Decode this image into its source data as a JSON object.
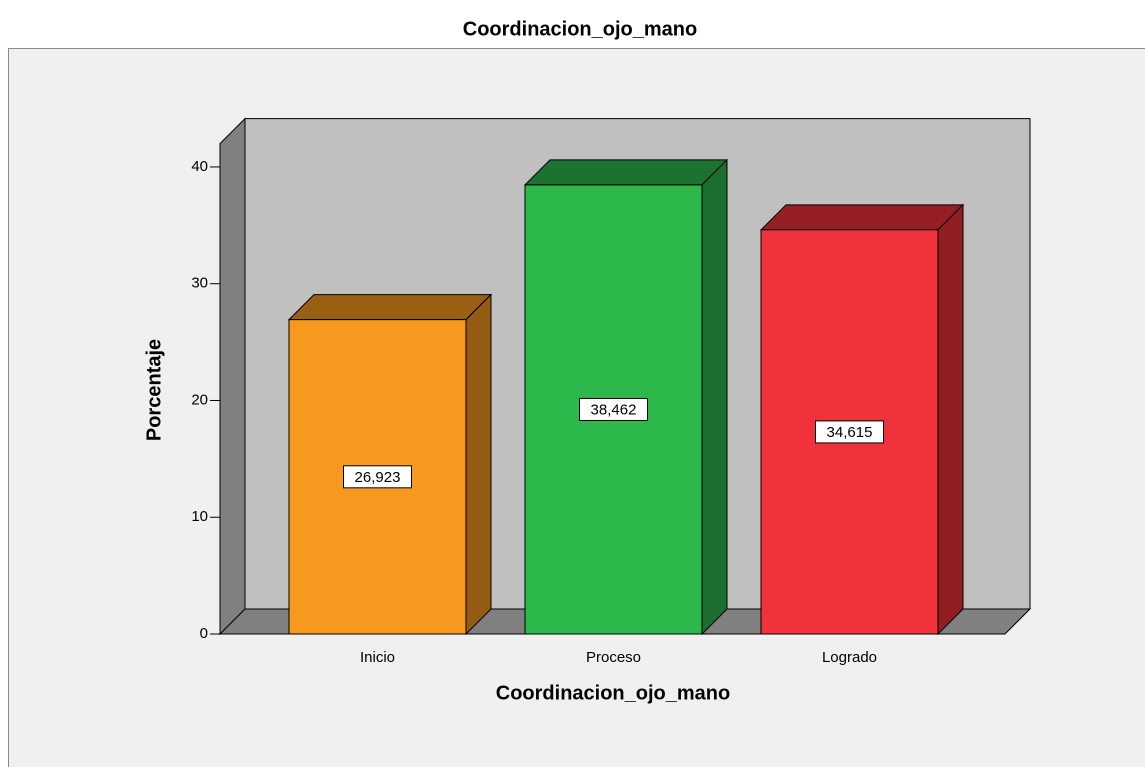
{
  "chart_data": {
    "type": "bar3d",
    "title": "Coordinacion_ojo_mano",
    "x_label": "Coordinacion_ojo_mano",
    "y_label": "Porcentaje",
    "categories": [
      "Inicio",
      "Proceso",
      "Logrado"
    ],
    "values": [
      26.923,
      38.462,
      34.615
    ],
    "value_labels": [
      "26,923",
      "38,462",
      "34,615"
    ],
    "colors": [
      "#f7991e",
      "#2db84b",
      "#f0323b"
    ],
    "ylim": [
      0,
      42
    ],
    "yticks": [
      0,
      10,
      20,
      30,
      40
    ],
    "grid": false
  }
}
